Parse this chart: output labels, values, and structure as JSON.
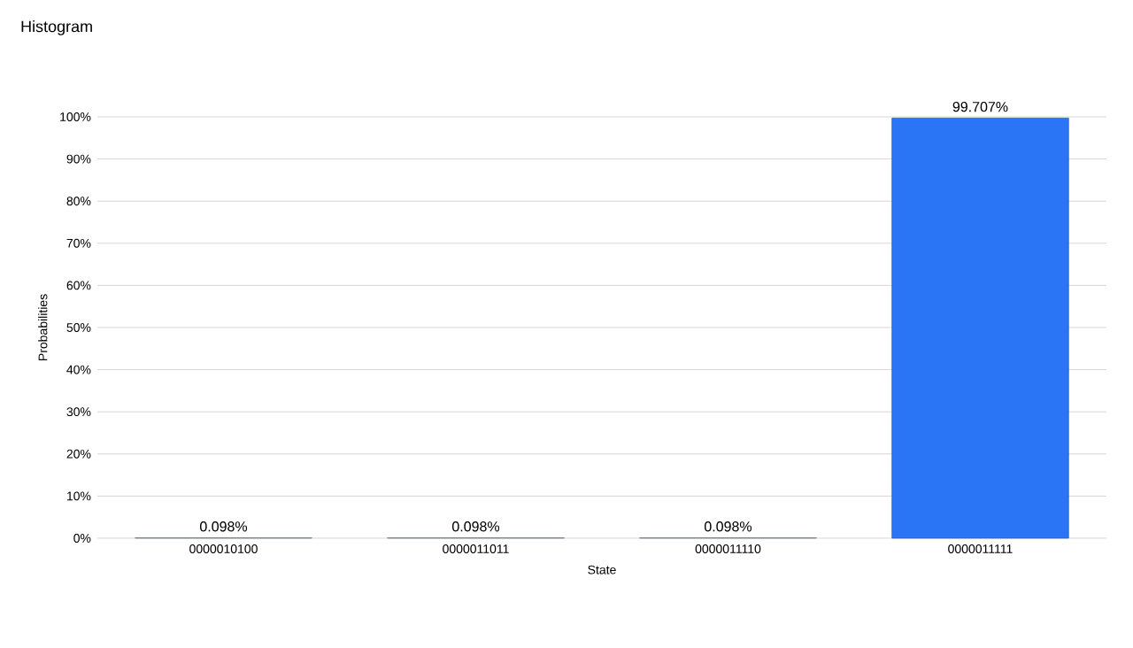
{
  "chart_data": {
    "type": "bar",
    "title": "Histogram",
    "xlabel": "State",
    "ylabel": "Probabilities",
    "categories": [
      "0000010100",
      "0000011011",
      "0000011110",
      "0000011111"
    ],
    "values": [
      0.098,
      0.098,
      0.098,
      99.707
    ],
    "colors": [
      "#8a9ab8",
      "#8a9ab8",
      "#8a9ab8",
      "#2a75f5"
    ],
    "value_labels": [
      "0.098%",
      "0.098%",
      "0.098%",
      "99.707%"
    ],
    "ylim": [
      0,
      100
    ],
    "yticks": [
      {
        "value": 0,
        "label": "0%"
      },
      {
        "value": 10,
        "label": "10%"
      },
      {
        "value": 20,
        "label": "20%"
      },
      {
        "value": 30,
        "label": "30%"
      },
      {
        "value": 40,
        "label": "40%"
      },
      {
        "value": 50,
        "label": "50%"
      },
      {
        "value": 60,
        "label": "60%"
      },
      {
        "value": 70,
        "label": "70%"
      },
      {
        "value": 80,
        "label": "80%"
      },
      {
        "value": 90,
        "label": "90%"
      },
      {
        "value": 100,
        "label": "100%"
      }
    ],
    "grid": "y"
  }
}
